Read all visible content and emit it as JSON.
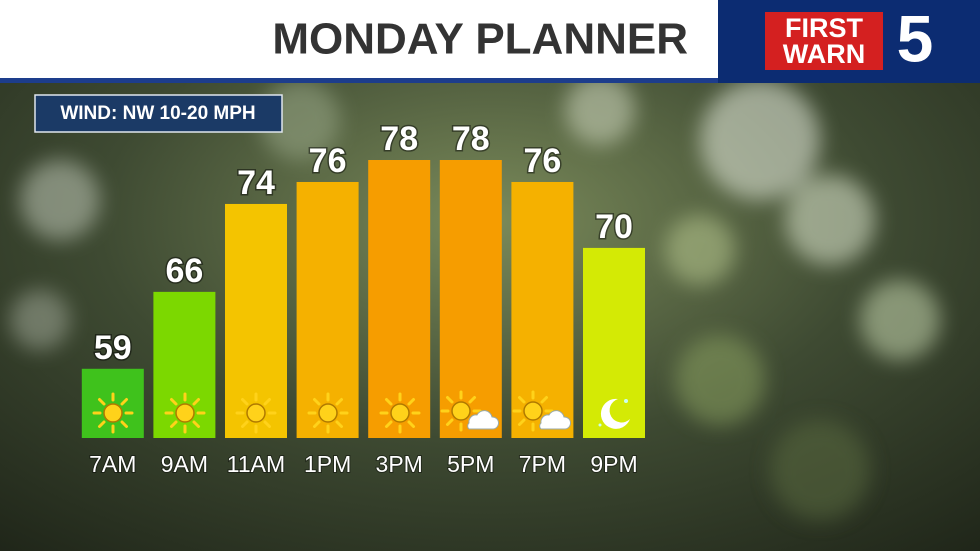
{
  "logo": {
    "line1": "FIRST",
    "line2": "WARN",
    "number": "5"
  },
  "chart_data": {
    "type": "bar",
    "title": "MONDAY PLANNER",
    "annotation": "WIND: NW 10-20 MPH",
    "categories": [
      "7AM",
      "9AM",
      "11AM",
      "1PM",
      "3PM",
      "5PM",
      "7PM",
      "9PM"
    ],
    "values": [
      59,
      66,
      74,
      76,
      78,
      78,
      76,
      70
    ],
    "colors": [
      "#3fc21c",
      "#7cd800",
      "#f4c400",
      "#f5b100",
      "#f69d00",
      "#f69d00",
      "#f5b100",
      "#d4ea05"
    ],
    "ylim": [
      52.7,
      78
    ]
  }
}
